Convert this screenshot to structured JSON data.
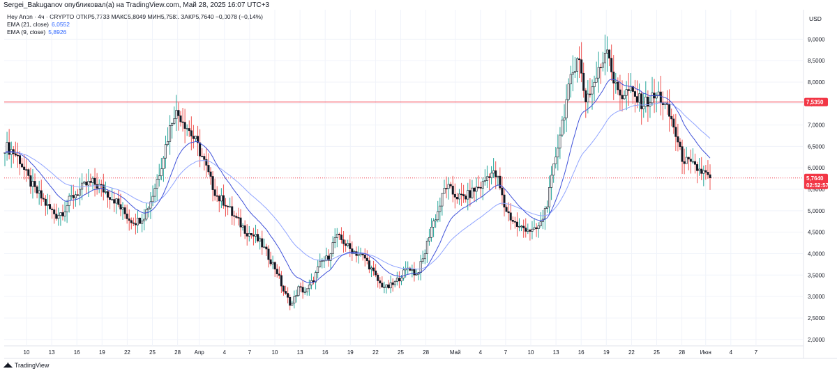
{
  "header": {
    "publisher": "Sergei_Bakuganov опубликовал(а) на TradingView.com, Май 28, 2025 16:07 UTC+3",
    "ohlc": "Hey Anon · 4ч · CRYPTO  ОТКР5,7733  МАКС5,8049  МИН5,7581  ЗАКР5,7640  −0,0078 (−0,14%)"
  },
  "legend": {
    "ema21_label": "EMA (21, close)",
    "ema21_value": "6,0552",
    "ema9_label": "EMA (9, close)",
    "ema9_value": "5,8926"
  },
  "currency": "USD",
  "brand": "TradingView",
  "colors": {
    "up": "#26a69a",
    "down": "#ef5350",
    "candle_body": "#131722",
    "ema21": "#90a4ff",
    "ema9": "#3f51d9",
    "resistance": "#f23645",
    "price_tag": "#f23645"
  },
  "chart_data": {
    "type": "candlestick",
    "y_axis": {
      "min": 1.85,
      "max": 9.2,
      "ticks": [
        2.0,
        2.5,
        3.0,
        3.5,
        4.0,
        4.5,
        5.0,
        5.5,
        6.0,
        6.5,
        7.0,
        7.5,
        8.0,
        8.5,
        9.0
      ],
      "tick_labels": [
        "2,0000",
        "2,5000",
        "3,0000",
        "3,5000",
        "4,0000",
        "4,5000",
        "5,0000",
        "5,5000",
        "6,0000",
        "6,5000",
        "7,0000",
        "7,5000",
        "8,0000",
        "8,5000",
        "9,0000"
      ]
    },
    "x_axis": {
      "labels": [
        "10",
        "13",
        "16",
        "19",
        "22",
        "25",
        "28",
        "Апр",
        "4",
        "7",
        "10",
        "13",
        "16",
        "19",
        "22",
        "25",
        "28",
        "Май",
        "4",
        "7",
        "10",
        "13",
        "16",
        "19",
        "22",
        "25",
        "28",
        "Июн",
        "4",
        "7"
      ]
    },
    "horizontal_line": {
      "value": 7.535,
      "label": "7,5350"
    },
    "last_price": {
      "value": 5.764,
      "label": "5,7640",
      "countdown": "02:52:57"
    },
    "close_series": [
      6.5,
      6.4,
      6.2,
      5.8,
      5.5,
      5.3,
      5.05,
      4.9,
      5.0,
      5.3,
      5.45,
      5.6,
      5.65,
      5.55,
      5.4,
      5.25,
      5.0,
      4.8,
      4.75,
      4.9,
      5.3,
      5.9,
      6.6,
      7.3,
      7.2,
      6.9,
      6.6,
      6.2,
      5.7,
      5.3,
      5.2,
      4.9,
      4.7,
      4.5,
      4.4,
      4.2,
      3.9,
      3.6,
      3.1,
      2.8,
      3.2,
      3.1,
      3.4,
      3.8,
      3.9,
      4.4,
      4.3,
      4.1,
      4.0,
      3.9,
      3.6,
      3.3,
      3.2,
      3.3,
      3.5,
      3.7,
      3.5,
      3.9,
      4.6,
      5.0,
      5.6,
      5.4,
      5.3,
      5.35,
      5.5,
      5.6,
      5.9,
      5.8,
      5.1,
      4.8,
      4.6,
      4.6,
      4.5,
      4.7,
      5.3,
      6.3,
      7.2,
      8.0,
      8.7,
      7.6,
      7.9,
      8.3,
      8.9,
      7.9,
      7.7,
      7.8,
      7.6,
      7.5,
      7.6,
      7.7,
      7.4,
      7.0,
      6.3,
      6.1,
      6.0,
      5.9,
      5.76
    ]
  }
}
